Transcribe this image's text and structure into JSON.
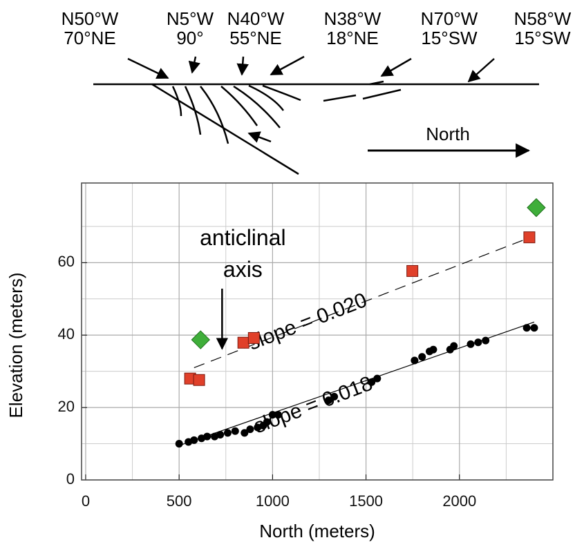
{
  "diagram": {
    "labels": [
      {
        "strike": "N50°W",
        "dip": "70°NE"
      },
      {
        "strike": "N5°W",
        "dip": "90°"
      },
      {
        "strike": "N40°W",
        "dip": "55°NE"
      },
      {
        "strike": "N38°W",
        "dip": "18°NE"
      },
      {
        "strike": "N70°W",
        "dip": "15°SW"
      },
      {
        "strike": "N58°W",
        "dip": "15°SW"
      }
    ],
    "direction": "North"
  },
  "chart_data": {
    "type": "scatter",
    "x_label": "North (meters)",
    "y_label": "Elevation (meters)",
    "xlim": [
      -22,
      2500
    ],
    "ylim": [
      0,
      82
    ],
    "xticks": [
      0,
      500,
      1000,
      1500,
      2000
    ],
    "yticks": [
      0,
      20,
      40,
      60
    ],
    "xminor": [
      250,
      750,
      1250,
      1750,
      2250
    ],
    "yminor": [
      10,
      30,
      50,
      70
    ],
    "grid": true,
    "series": [
      {
        "marker": "circle",
        "color": "#000000",
        "x": [
          500,
          550,
          580,
          620,
          650,
          690,
          720,
          760,
          800,
          850,
          880,
          920,
          950,
          970,
          1000,
          1030,
          1300,
          1330,
          1530,
          1560,
          1760,
          1800,
          1840,
          1860,
          1950,
          1970,
          2060,
          2100,
          2140,
          2360,
          2400
        ],
        "values": [
          10,
          10.5,
          11,
          11.5,
          12,
          12,
          12.5,
          13,
          13.5,
          13,
          14,
          14.5,
          15,
          16,
          18,
          18,
          22,
          23,
          27,
          28,
          33,
          34,
          35.5,
          36,
          36,
          37,
          37.5,
          38,
          38.5,
          42,
          42
        ]
      },
      {
        "marker": "square",
        "color": "#e0402a",
        "x": [
          559,
          607,
          844,
          900,
          1748,
          2374
        ],
        "values": [
          28,
          27.6,
          37.9,
          39.2,
          57.7,
          67
        ]
      },
      {
        "marker": "diamond",
        "color": "#3fae3a",
        "x": [
          615,
          2411
        ],
        "values": [
          38.7,
          75.2
        ]
      }
    ],
    "fit_lines": [
      {
        "dashed": false,
        "x": [
          500,
          2400
        ],
        "values": [
          9.5,
          43.6
        ]
      },
      {
        "dashed": true,
        "x": [
          580,
          2380
        ],
        "values": [
          31,
          67
        ]
      }
    ],
    "annotations": [
      {
        "text": "slope = 0.020",
        "x": 1200,
        "y": 42,
        "rotate": -21
      },
      {
        "text": "slope = 0.018",
        "x": 1230,
        "y": 19,
        "rotate": -21
      }
    ],
    "axis_note": {
      "lines": [
        "anticlinal",
        "axis"
      ],
      "x": 730
    }
  }
}
